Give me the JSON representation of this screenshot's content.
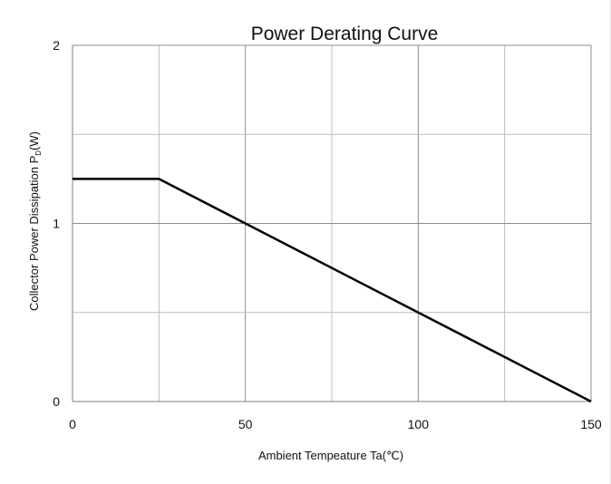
{
  "chart_data": {
    "type": "line",
    "title": "Power Derating Curve",
    "xlabel": "Ambient Tempeature Ta(℃)",
    "ylabel": {
      "prefix": "Collector Power Dissipation  P",
      "subscript": "D",
      "suffix": "(W)"
    },
    "xlim": [
      0,
      150
    ],
    "ylim": [
      0,
      2
    ],
    "xticks": [
      0,
      50,
      100,
      150
    ],
    "xtick_labels": [
      "0",
      "50",
      "100",
      "150"
    ],
    "yticks": [
      0,
      1,
      2
    ],
    "ytick_labels": [
      "0",
      "1",
      "2"
    ],
    "x_gridlines": [
      0,
      25,
      50,
      75,
      100,
      125,
      150
    ],
    "y_gridlines": [
      0,
      0.5,
      1,
      1.5,
      2
    ],
    "grid": true,
    "legend": "none",
    "series": [
      {
        "x": [
          0,
          25,
          150
        ],
        "y": [
          1.25,
          1.25,
          0
        ],
        "color": "#000000"
      }
    ],
    "colors": {
      "grid": "#bdbdbd",
      "line": "#000000",
      "axis": "#7f7f7f"
    }
  }
}
